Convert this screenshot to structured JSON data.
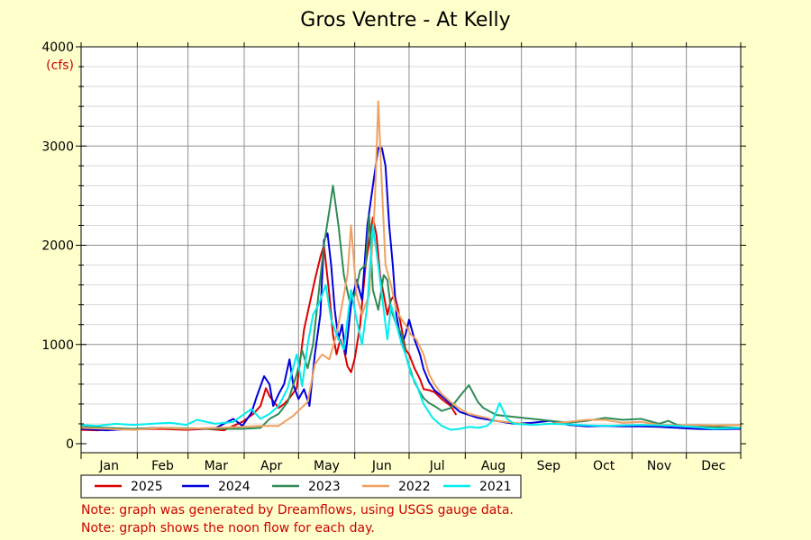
{
  "chart_data": {
    "type": "line",
    "title": "Gros Ventre - At Kelly",
    "ylabel": "(cfs)",
    "xlabel": "",
    "ylim": [
      0,
      4000
    ],
    "y_ticks": [
      0,
      1000,
      2000,
      3000,
      4000
    ],
    "x_unit": "day of year",
    "xlim": [
      1,
      365
    ],
    "months": [
      "Jan",
      "Feb",
      "Mar",
      "Apr",
      "May",
      "Jun",
      "Jul",
      "Aug",
      "Sep",
      "Oct",
      "Nov",
      "Dec"
    ],
    "grid": true,
    "legend_position": "bottom-left",
    "series": [
      {
        "name": "2025",
        "color": "#dd0000",
        "x": [
          1,
          10,
          20,
          31,
          45,
          59,
          70,
          80,
          85,
          90,
          93,
          96,
          100,
          103,
          105,
          110,
          113,
          116,
          120,
          122,
          124,
          127,
          130,
          133,
          135,
          138,
          140,
          142,
          144,
          146,
          148,
          150,
          152,
          155,
          158,
          162,
          164,
          166,
          170,
          172,
          174,
          176,
          178,
          180,
          182,
          185,
          188,
          190,
          193,
          196,
          200,
          205,
          208
        ],
        "y": [
          140,
          135,
          150,
          145,
          150,
          140,
          150,
          135,
          180,
          220,
          260,
          300,
          380,
          560,
          480,
          360,
          400,
          460,
          560,
          850,
          1150,
          1400,
          1650,
          1880,
          2000,
          1500,
          1100,
          900,
          1050,
          950,
          780,
          720,
          860,
          1200,
          1800,
          2280,
          2100,
          1700,
          1300,
          1450,
          1500,
          1350,
          1150,
          950,
          900,
          760,
          650,
          550,
          540,
          520,
          450,
          380,
          290
        ]
      },
      {
        "name": "2024",
        "color": "#0000dd",
        "x": [
          1,
          15,
          30,
          45,
          59,
          75,
          85,
          90,
          95,
          98,
          102,
          105,
          107,
          110,
          113,
          116,
          118,
          121,
          124,
          127,
          130,
          133,
          135,
          137,
          139,
          141,
          143,
          145,
          147,
          150,
          153,
          156,
          159,
          162,
          165,
          167,
          169,
          171,
          173,
          175,
          178,
          180,
          182,
          185,
          188,
          190,
          193,
          196,
          200,
          205,
          210,
          215,
          220,
          230,
          240,
          250,
          260,
          270,
          280,
          290,
          300,
          310,
          320,
          330,
          340,
          350,
          365
        ],
        "y": [
          150,
          135,
          150,
          160,
          150,
          155,
          250,
          180,
          310,
          480,
          680,
          600,
          380,
          500,
          600,
          850,
          600,
          450,
          550,
          380,
          900,
          1300,
          2050,
          2120,
          1800,
          1350,
          1050,
          1200,
          900,
          1400,
          1650,
          1450,
          2200,
          2600,
          2980,
          2980,
          2800,
          2200,
          1800,
          1300,
          1000,
          1100,
          1250,
          1050,
          900,
          750,
          620,
          540,
          480,
          400,
          320,
          290,
          260,
          230,
          200,
          210,
          230,
          190,
          175,
          180,
          175,
          175,
          170,
          160,
          150,
          145,
          150
        ]
      },
      {
        "name": "2023",
        "color": "#2e8b57",
        "x": [
          1,
          15,
          30,
          45,
          59,
          75,
          90,
          100,
          105,
          110,
          115,
          120,
          123,
          126,
          129,
          132,
          135,
          138,
          140,
          143,
          146,
          149,
          152,
          155,
          158,
          160,
          162,
          165,
          168,
          170,
          172,
          175,
          178,
          180,
          182,
          185,
          188,
          190,
          193,
          196,
          200,
          205,
          210,
          215,
          220,
          223,
          226,
          230,
          235,
          240,
          250,
          260,
          270,
          280,
          290,
          300,
          310,
          320,
          325,
          330,
          340,
          350,
          365
        ],
        "y": [
          170,
          160,
          150,
          160,
          155,
          150,
          150,
          160,
          250,
          300,
          420,
          700,
          940,
          760,
          1000,
          1500,
          2000,
          2350,
          2600,
          2200,
          1700,
          1450,
          1500,
          1750,
          1800,
          2300,
          1550,
          1350,
          1700,
          1650,
          1350,
          1200,
          1100,
          900,
          780,
          620,
          520,
          460,
          410,
          380,
          330,
          360,
          480,
          590,
          420,
          360,
          330,
          290,
          280,
          270,
          250,
          230,
          210,
          230,
          260,
          240,
          250,
          200,
          230,
          190,
          180,
          170,
          160
        ]
      },
      {
        "name": "2022",
        "color": "#f0a060",
        "x": [
          1,
          15,
          30,
          45,
          59,
          75,
          90,
          100,
          110,
          118,
          122,
          126,
          130,
          134,
          138,
          142,
          145,
          148,
          150,
          153,
          156,
          160,
          163,
          165,
          167,
          169,
          172,
          175,
          178,
          180,
          183,
          186,
          190,
          193,
          196,
          200,
          205,
          210,
          215,
          220,
          225,
          230,
          240,
          250,
          260,
          270,
          280,
          290,
          300,
          310,
          320,
          330,
          340,
          350,
          365
        ],
        "y": [
          160,
          150,
          140,
          160,
          150,
          160,
          170,
          180,
          180,
          280,
          350,
          420,
          800,
          900,
          850,
          1100,
          1400,
          1700,
          2200,
          1500,
          1300,
          1500,
          2400,
          3450,
          2600,
          1800,
          1600,
          1350,
          1250,
          1200,
          1100,
          1050,
          900,
          700,
          600,
          500,
          420,
          350,
          300,
          280,
          260,
          230,
          210,
          190,
          200,
          220,
          240,
          240,
          210,
          220,
          190,
          185,
          190,
          185,
          190
        ]
      },
      {
        "name": "2021",
        "color": "#00eeee",
        "x": [
          1,
          10,
          20,
          30,
          40,
          50,
          59,
          65,
          75,
          85,
          95,
          100,
          105,
          110,
          115,
          120,
          123,
          126,
          129,
          132,
          136,
          139,
          142,
          146,
          150,
          153,
          156,
          159,
          162,
          165,
          168,
          170,
          172,
          175,
          178,
          180,
          183,
          186,
          190,
          195,
          200,
          205,
          210,
          215,
          220,
          225,
          228,
          232,
          236,
          240,
          250,
          260,
          270,
          280,
          290,
          300,
          310,
          320,
          330,
          340,
          350,
          365
        ],
        "y": [
          190,
          180,
          200,
          190,
          200,
          210,
          190,
          240,
          200,
          220,
          350,
          250,
          300,
          380,
          560,
          900,
          580,
          1000,
          1300,
          1400,
          1600,
          1250,
          1100,
          950,
          1550,
          1250,
          1000,
          1400,
          2200,
          1800,
          1350,
          1050,
          1400,
          1200,
          1000,
          900,
          700,
          600,
          400,
          260,
          180,
          140,
          150,
          170,
          160,
          180,
          230,
          410,
          250,
          200,
          190,
          200,
          195,
          185,
          180,
          185,
          190,
          185,
          180,
          170,
          150,
          160
        ]
      }
    ]
  },
  "notes": [
    "Note: graph was generated by Dreamflows, using USGS gauge data.",
    "Note: graph shows the noon flow for each day."
  ]
}
